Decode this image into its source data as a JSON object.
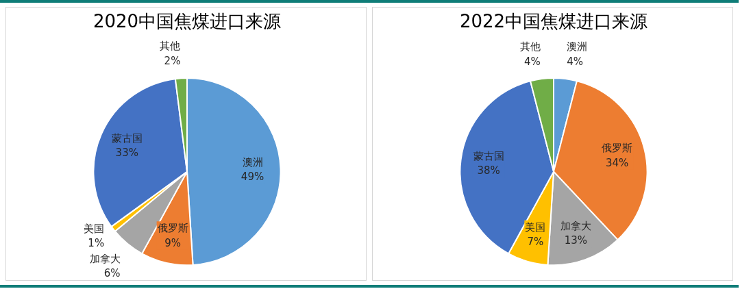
{
  "chart_data": [
    {
      "type": "pie",
      "title": "2020中国焦煤进口来源",
      "categories": [
        "澳洲",
        "俄罗斯",
        "加拿大",
        "美国",
        "蒙古国",
        "其他"
      ],
      "values": [
        49,
        9,
        6,
        1,
        33,
        2
      ],
      "value_labels": [
        "49%",
        "9%",
        "6%",
        "1%",
        "33%",
        "2%"
      ],
      "colors": [
        "#5b9bd5",
        "#ed7d31",
        "#a5a5a5",
        "#ffc000",
        "#4472c4",
        "#70ad47"
      ]
    },
    {
      "type": "pie",
      "title": "2022中国焦煤进口来源",
      "categories": [
        "澳洲",
        "俄罗斯",
        "加拿大",
        "美国",
        "蒙古国",
        "其他"
      ],
      "values": [
        4,
        34,
        13,
        7,
        38,
        4
      ],
      "value_labels": [
        "4%",
        "34%",
        "13%",
        "7%",
        "38%",
        "4%"
      ],
      "colors": [
        "#5b9bd5",
        "#ed7d31",
        "#a5a5a5",
        "#ffc000",
        "#4472c4",
        "#70ad47"
      ]
    }
  ]
}
